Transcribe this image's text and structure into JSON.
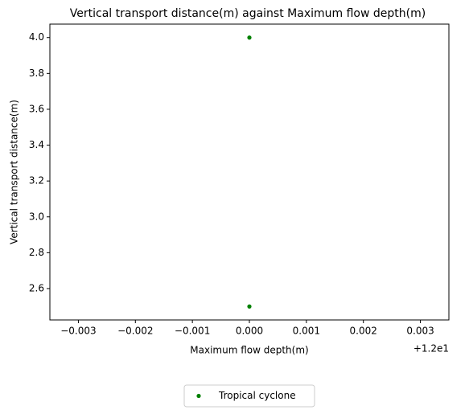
{
  "chart_data": {
    "type": "scatter",
    "title": "Vertical transport distance(m) against Maximum flow depth(m)",
    "x_label": "Maximum flow depth(m)",
    "y_label": "Vertical transport distance(m)",
    "x_offset_label": "+1.2e1",
    "x": [
      12,
      12
    ],
    "series": [
      {
        "name": "Tropical cyclone",
        "color": "#008000",
        "values": [
          4.0,
          2.5
        ]
      }
    ],
    "xlim": [
      11.9965,
      12.0035
    ],
    "xticks": [
      {
        "value": 11.997,
        "label": "−0.003"
      },
      {
        "value": 11.998,
        "label": "−0.002"
      },
      {
        "value": 11.999,
        "label": "−0.001"
      },
      {
        "value": 12,
        "label": "0.000"
      },
      {
        "value": 12.001,
        "label": "0.001"
      },
      {
        "value": 12.002,
        "label": "0.002"
      },
      {
        "value": 12.003,
        "label": "0.003"
      }
    ],
    "ylim": [
      2.425,
      4.075
    ],
    "yticks": [
      2.6,
      2.8,
      {
        "value": 3,
        "label": "3.0"
      },
      3.2,
      3.4,
      3.6,
      3.8,
      {
        "value": 4,
        "label": "4.0"
      }
    ],
    "grid": false,
    "legend": "bottom"
  }
}
